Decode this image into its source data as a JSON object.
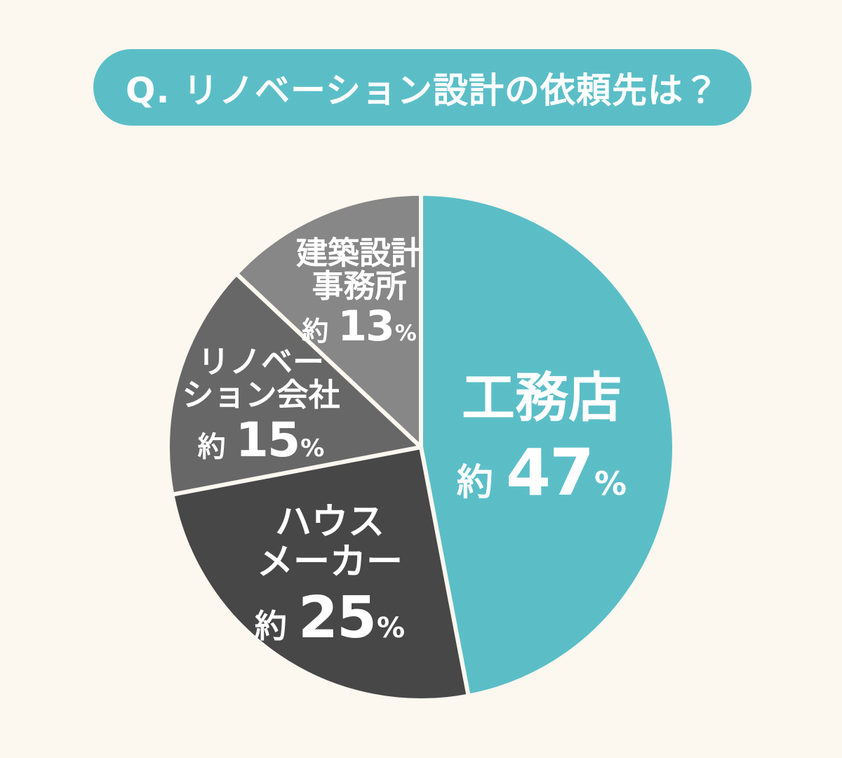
{
  "page": {
    "background_color": "#FCF7EF"
  },
  "header": {
    "question_label": "Q. リノベーション設計の依頼先は？",
    "background_color": "#5BBEC7",
    "text_color": "#FFFFFF"
  },
  "chart_data": {
    "type": "pie",
    "title": "Q. リノベーション設計の依頼先は？",
    "start_angle": "12-oclock",
    "direction": "clockwise",
    "separator_color": "#FCF7EF",
    "label_color": "#FFFFFF",
    "slices": [
      {
        "key": "koumuten",
        "label": "工務店",
        "label_line1": "工務店",
        "label_line2": "",
        "approx": "約",
        "value": 47,
        "unit": "%",
        "color": "#5BBEC7"
      },
      {
        "key": "house-maker",
        "label": "ハウスメーカー",
        "label_line1": "ハウス",
        "label_line2": "メーカー",
        "approx": "約",
        "value": 25,
        "unit": "%",
        "color": "#474747"
      },
      {
        "key": "renovation-company",
        "label": "リノベーション会社",
        "label_line1": "リノベー",
        "label_line2": "ション会社",
        "approx": "約",
        "value": 15,
        "unit": "%",
        "color": "#676767"
      },
      {
        "key": "architecture-design-office",
        "label": "建築設計事務所",
        "label_line1": "建築設計",
        "label_line2": "事務所",
        "approx": "約",
        "value": 13,
        "unit": "%",
        "color": "#878787"
      }
    ]
  }
}
